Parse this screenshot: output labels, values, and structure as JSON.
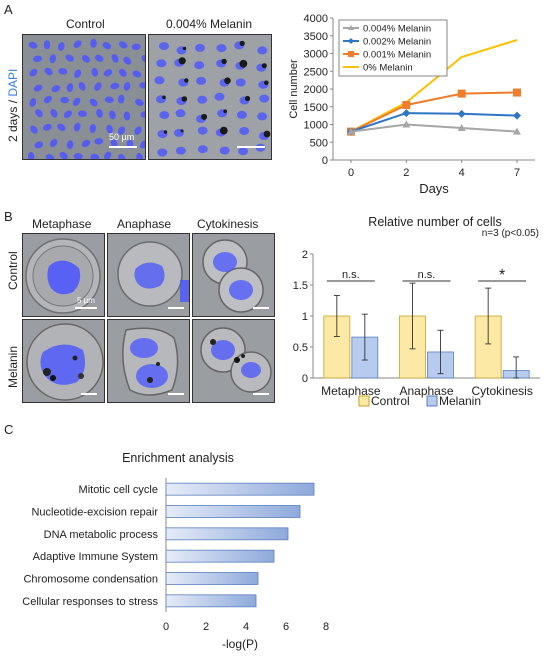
{
  "panels": {
    "a_letter": "A",
    "b_letter": "B",
    "c_letter": "C"
  },
  "panel_a": {
    "micro_titles": [
      "Control",
      "0.004% Melanin"
    ],
    "row_label_main": "2 days / ",
    "row_label_dapi": "DAPI",
    "scale_label": "50 µm"
  },
  "panel_b": {
    "col_titles": [
      "Metaphase",
      "Anaphase",
      "Cytokinesis"
    ],
    "row_labels": [
      "Control",
      "Melanin"
    ],
    "scale_label": "5 µm"
  },
  "colors": {
    "dapi": "#4a55ff",
    "control_bar": "#fde9a6",
    "melanin_bar": "#b6cbee",
    "series_004": "#a6a6a6",
    "series_002": "#2e75c5",
    "series_001": "#ef7d2c",
    "series_0": "#ffc000",
    "enrich_bar": "#8ea9db"
  },
  "chart_data": [
    {
      "type": "line",
      "x": [
        0,
        2,
        4,
        7
      ],
      "xlabel": "Days",
      "ylabel": "Cell number",
      "ylim": [
        0,
        4000
      ],
      "yticks": [
        0,
        500,
        1000,
        1500,
        2000,
        2500,
        3000,
        3500,
        4000
      ],
      "legend_position": "top-left",
      "series": [
        {
          "name": "0.004% Melanin",
          "values": [
            800,
            1000,
            900,
            800
          ]
        },
        {
          "name": "0.002% Melanin",
          "values": [
            800,
            1320,
            1300,
            1250
          ]
        },
        {
          "name": "0.001% Melanin",
          "values": [
            800,
            1550,
            1870,
            1900
          ]
        },
        {
          "name": "0% Melanin",
          "values": [
            800,
            1620,
            2900,
            3380
          ]
        }
      ]
    },
    {
      "type": "bar",
      "title": "Relative number of cells",
      "annotation": "n=3 (p<0.05)",
      "categories": [
        "Metaphase",
        "Anaphase",
        "Cytokinesis"
      ],
      "ylim": [
        0,
        2
      ],
      "yticks": [
        "0",
        "0.5",
        "1",
        "1.5",
        "2"
      ],
      "legend_position": "bottom",
      "significance": [
        "n.s.",
        "n.s.",
        "*"
      ],
      "series": [
        {
          "name": "Control",
          "values": [
            1.0,
            1.0,
            1.0
          ],
          "errors": [
            0.33,
            0.53,
            0.45
          ]
        },
        {
          "name": "Melanin",
          "values": [
            0.66,
            0.42,
            0.12
          ],
          "errors": [
            0.37,
            0.35,
            0.22
          ]
        }
      ]
    },
    {
      "type": "bar",
      "orientation": "horizontal",
      "title": "Enrichment analysis",
      "categories": [
        "Mitotic cell cycle",
        "Nucleotide-excision repair",
        "DNA metabolic process",
        "Adaptive Immune System",
        "Chromosome condensation",
        "Cellular responses to stress"
      ],
      "values": [
        7.4,
        6.7,
        6.1,
        5.4,
        4.6,
        4.5
      ],
      "xlabel": "-log(P)",
      "xlim": [
        0,
        8
      ],
      "xticks": [
        "0",
        "2",
        "4",
        "6",
        "8"
      ]
    }
  ]
}
